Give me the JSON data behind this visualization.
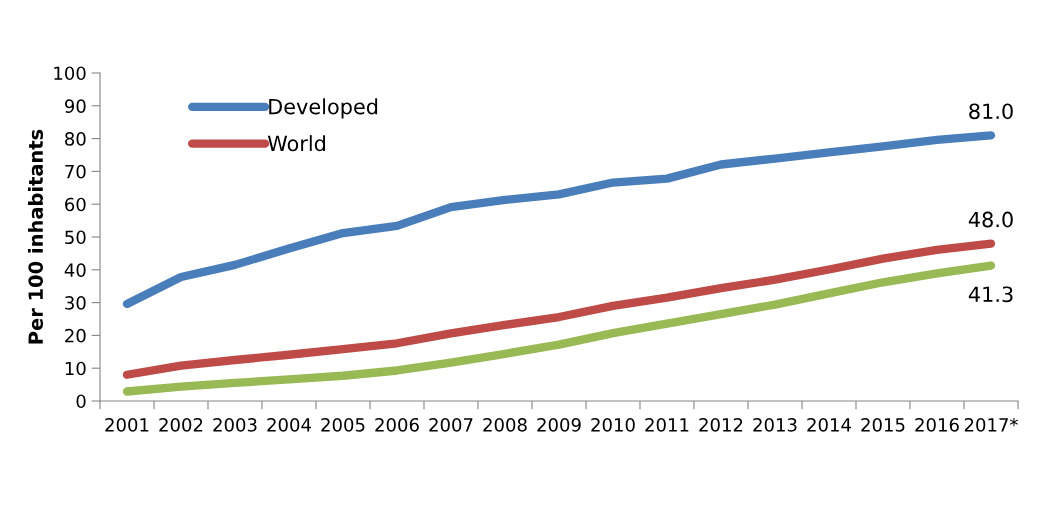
{
  "chart_data": {
    "type": "line",
    "ylabel": "Per 100 inhabitants",
    "categories": [
      "2001",
      "2002",
      "2003",
      "2004",
      "2005",
      "2006",
      "2007",
      "2008",
      "2009",
      "2010",
      "2011",
      "2012",
      "2013",
      "2014",
      "2015",
      "2016",
      "2017*"
    ],
    "series": [
      {
        "name": "Developed",
        "color": "#4a7ebb",
        "values": [
          29.6,
          37.8,
          41.5,
          46.5,
          51.2,
          53.4,
          59.1,
          61.3,
          63.0,
          66.6,
          67.8,
          72.1,
          73.9,
          75.8,
          77.6,
          79.6,
          81.0
        ],
        "value_labels": [
          null,
          null,
          null,
          null,
          null,
          null,
          null,
          null,
          null,
          null,
          null,
          null,
          null,
          null,
          null,
          null,
          "81.0"
        ]
      },
      {
        "name": "World",
        "color": "#be4b48",
        "values": [
          8.0,
          10.8,
          12.5,
          14.1,
          15.8,
          17.6,
          20.6,
          23.2,
          25.6,
          29.0,
          31.5,
          34.4,
          37.0,
          40.1,
          43.4,
          46.1,
          48.0
        ],
        "value_labels": [
          null,
          null,
          null,
          null,
          null,
          null,
          null,
          null,
          null,
          null,
          null,
          null,
          null,
          null,
          null,
          null,
          "48.0"
        ]
      },
      {
        "color": "#98b954",
        "values": [
          2.9,
          4.4,
          5.5,
          6.6,
          7.7,
          9.3,
          11.7,
          14.4,
          17.2,
          20.7,
          23.6,
          26.5,
          29.4,
          32.8,
          36.2,
          38.9,
          41.3
        ],
        "value_labels": [
          null,
          null,
          null,
          null,
          null,
          null,
          null,
          null,
          null,
          null,
          null,
          null,
          null,
          null,
          null,
          null,
          "41.3"
        ]
      }
    ],
    "ylim": [
      0,
      100
    ],
    "yticks": [
      0,
      10,
      20,
      30,
      40,
      50,
      60,
      70,
      80,
      90,
      100
    ],
    "grid": false,
    "legend": "top left",
    "marker": "none",
    "line_style": "solid"
  }
}
